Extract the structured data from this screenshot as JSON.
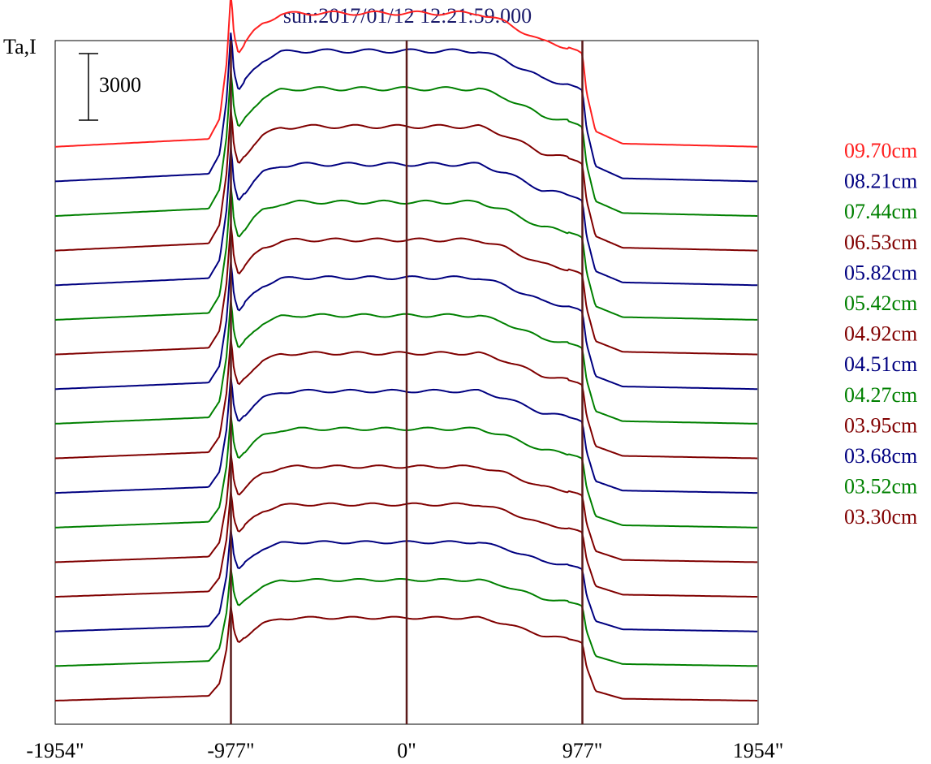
{
  "chart_data": {
    "type": "line",
    "title": "sun:2017/01/12 12:21:59.000",
    "ylabel": "Ta,I",
    "xlabel": "",
    "scale_bar": {
      "label": "3000",
      "value": 3000
    },
    "x_ticks": [
      "-1954\"",
      "-977\"",
      "0\"",
      "977\"",
      "1954\""
    ],
    "x_tick_values": [
      -1954,
      -977,
      0,
      977,
      1954
    ],
    "xlim": [
      -1954,
      1954
    ],
    "vertical_markers": [
      -977,
      0,
      977
    ],
    "grid": false,
    "legend_position": "right",
    "series": [
      {
        "name": "09.70cm",
        "color": "#ff2020"
      },
      {
        "name": "08.21cm",
        "color": "#000080"
      },
      {
        "name": "07.44cm",
        "color": "#008000"
      },
      {
        "name": "06.53cm",
        "color": "#800000"
      },
      {
        "name": "05.82cm",
        "color": "#000080"
      },
      {
        "name": "05.42cm",
        "color": "#008000"
      },
      {
        "name": "04.92cm",
        "color": "#800000"
      },
      {
        "name": "04.51cm",
        "color": "#000080"
      },
      {
        "name": "04.27cm",
        "color": "#008000"
      },
      {
        "name": "03.95cm",
        "color": "#800000"
      },
      {
        "name": "03.68cm",
        "color": "#000080"
      },
      {
        "name": "03.52cm",
        "color": "#008000"
      },
      {
        "name": "03.30cm",
        "color": "#800000"
      },
      {
        "name": "",
        "color": "#800000"
      },
      {
        "name": "",
        "color": "#000080"
      },
      {
        "name": "",
        "color": "#008000"
      },
      {
        "name": "",
        "color": "#800000"
      }
    ],
    "profile_shape": {
      "x": [
        -1954,
        -1100,
        -1040,
        -1000,
        -977,
        -960,
        -935,
        -900,
        -850,
        -800,
        -700,
        -600,
        -400,
        -200,
        0,
        200,
        400,
        550,
        650,
        750,
        900,
        950,
        977,
        1000,
        1050,
        1200,
        1954
      ],
      "y_normalized": [
        0.0,
        0.05,
        0.18,
        0.55,
        1.0,
        0.72,
        0.6,
        0.66,
        0.74,
        0.8,
        0.85,
        0.86,
        0.86,
        0.86,
        0.86,
        0.86,
        0.86,
        0.8,
        0.74,
        0.68,
        0.64,
        0.62,
        0.6,
        0.35,
        0.1,
        0.02,
        0.0
      ],
      "peak_amplitude": 7000,
      "series_offset": 1560
    },
    "axis_color": "#000000",
    "marker_color": "#5a1a1a"
  }
}
